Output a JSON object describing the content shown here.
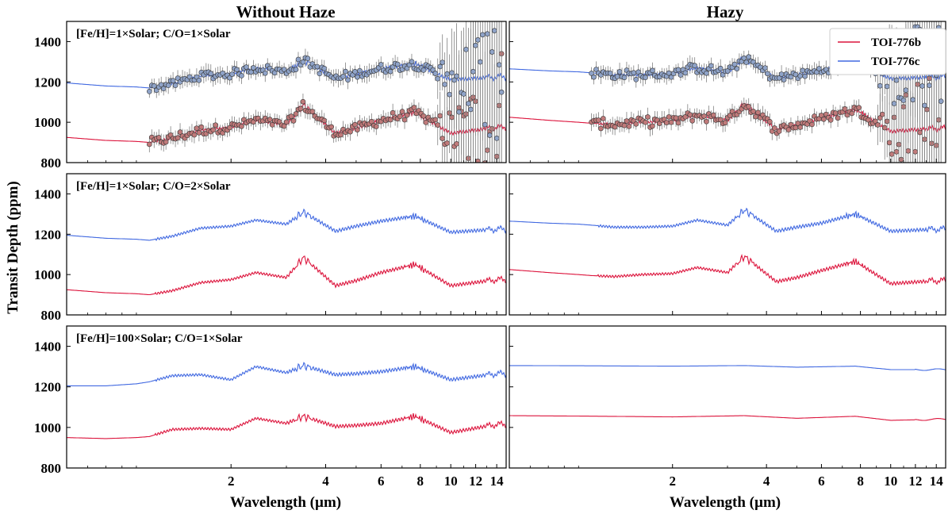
{
  "figure": {
    "column_titles": [
      "Without Haze",
      "Hazy"
    ],
    "xlabel": "Wavelength (µm)",
    "ylabel": "Transit Depth (ppm)",
    "legend": [
      {
        "label": "TOI-776b",
        "color": "#dc143c"
      },
      {
        "label": "TOI-776c",
        "color": "#4169e1"
      }
    ],
    "data_colors": {
      "b_points": "#c07a7a",
      "c_points": "#8fa3c8",
      "errorbar": "#808080"
    }
  },
  "chart_data": [
    {
      "type": "line",
      "panel": "Without Haze",
      "annotation": "[Fe/H]=1×Solar; C/O=1×Solar",
      "xscale": "log",
      "xlim": [
        0.6,
        15
      ],
      "ylim": [
        800,
        1500
      ],
      "xticks": [
        2,
        4,
        6,
        8,
        10,
        12,
        14
      ],
      "yticks": [
        800,
        1000,
        1200,
        1400
      ],
      "has_simulated_data": true,
      "series": [
        {
          "name": "TOI-776b",
          "x": [
            0.6,
            0.8,
            1.0,
            1.1,
            1.3,
            1.6,
            2.0,
            2.4,
            3.0,
            3.4,
            4.3,
            5.0,
            6.0,
            7.7,
            10.0,
            14.0
          ],
          "y": [
            925,
            910,
            905,
            900,
            920,
            960,
            975,
            1010,
            985,
            1085,
            945,
            970,
            1010,
            1050,
            945,
            975
          ]
        },
        {
          "name": "TOI-776c",
          "x": [
            0.6,
            0.8,
            1.0,
            1.1,
            1.3,
            1.6,
            2.0,
            2.4,
            3.0,
            3.4,
            4.3,
            5.0,
            6.0,
            7.7,
            10.0,
            14.0
          ],
          "y": [
            1195,
            1180,
            1175,
            1170,
            1190,
            1230,
            1240,
            1270,
            1250,
            1310,
            1215,
            1240,
            1265,
            1290,
            1210,
            1225
          ]
        }
      ]
    },
    {
      "type": "line",
      "panel": "Hazy",
      "annotation": "",
      "xscale": "log",
      "xlim": [
        0.6,
        15
      ],
      "ylim": [
        800,
        1500
      ],
      "xticks": [
        2,
        4,
        6,
        8,
        10,
        12,
        14
      ],
      "yticks": [
        800,
        1000,
        1200,
        1400
      ],
      "has_simulated_data": true,
      "series": [
        {
          "name": "TOI-776b",
          "x": [
            0.6,
            0.8,
            1.0,
            1.1,
            1.3,
            1.6,
            2.0,
            2.4,
            3.0,
            3.4,
            4.3,
            5.0,
            6.0,
            7.7,
            10.0,
            14.0
          ],
          "y": [
            1025,
            1010,
            1000,
            995,
            990,
            1000,
            1005,
            1035,
            1010,
            1090,
            965,
            985,
            1020,
            1065,
            955,
            970
          ]
        },
        {
          "name": "TOI-776c",
          "x": [
            0.6,
            0.8,
            1.0,
            1.1,
            1.3,
            1.6,
            2.0,
            2.4,
            3.0,
            3.4,
            4.3,
            5.0,
            6.0,
            7.7,
            10.0,
            14.0
          ],
          "y": [
            1265,
            1255,
            1250,
            1245,
            1235,
            1235,
            1240,
            1270,
            1245,
            1320,
            1215,
            1235,
            1255,
            1300,
            1215,
            1225
          ]
        }
      ]
    },
    {
      "type": "line",
      "panel": "Without Haze",
      "annotation": "[Fe/H]=1×Solar; C/O=2×Solar",
      "xscale": "log",
      "xlim": [
        0.6,
        15
      ],
      "ylim": [
        800,
        1500
      ],
      "xticks": [
        2,
        4,
        6,
        8,
        10,
        12,
        14
      ],
      "yticks": [
        800,
        1000,
        1200,
        1400
      ],
      "has_simulated_data": false,
      "series": [
        {
          "name": "TOI-776b",
          "x": [
            0.6,
            0.8,
            1.0,
            1.1,
            1.3,
            1.6,
            2.0,
            2.4,
            3.0,
            3.4,
            4.3,
            5.0,
            6.0,
            7.7,
            10.0,
            14.0
          ],
          "y": [
            925,
            910,
            905,
            900,
            920,
            960,
            975,
            1010,
            985,
            1085,
            945,
            970,
            1010,
            1050,
            945,
            975
          ]
        },
        {
          "name": "TOI-776c",
          "x": [
            0.6,
            0.8,
            1.0,
            1.1,
            1.3,
            1.6,
            2.0,
            2.4,
            3.0,
            3.4,
            4.3,
            5.0,
            6.0,
            7.7,
            10.0,
            14.0
          ],
          "y": [
            1195,
            1180,
            1175,
            1170,
            1190,
            1230,
            1240,
            1270,
            1250,
            1310,
            1215,
            1240,
            1265,
            1290,
            1210,
            1225
          ]
        }
      ]
    },
    {
      "type": "line",
      "panel": "Hazy",
      "annotation": "",
      "xscale": "log",
      "xlim": [
        0.6,
        15
      ],
      "ylim": [
        800,
        1500
      ],
      "xticks": [
        2,
        4,
        6,
        8,
        10,
        12,
        14
      ],
      "yticks": [
        800,
        1000,
        1200,
        1400
      ],
      "has_simulated_data": false,
      "series": [
        {
          "name": "TOI-776b",
          "x": [
            0.6,
            0.8,
            1.0,
            1.1,
            1.3,
            1.6,
            2.0,
            2.4,
            3.0,
            3.4,
            4.3,
            5.0,
            6.0,
            7.7,
            10.0,
            14.0
          ],
          "y": [
            1025,
            1010,
            1000,
            995,
            990,
            1000,
            1005,
            1035,
            1010,
            1090,
            965,
            985,
            1020,
            1065,
            955,
            970
          ]
        },
        {
          "name": "TOI-776c",
          "x": [
            0.6,
            0.8,
            1.0,
            1.1,
            1.3,
            1.6,
            2.0,
            2.4,
            3.0,
            3.4,
            4.3,
            5.0,
            6.0,
            7.7,
            10.0,
            14.0
          ],
          "y": [
            1265,
            1255,
            1250,
            1245,
            1235,
            1235,
            1240,
            1270,
            1245,
            1320,
            1215,
            1235,
            1255,
            1300,
            1215,
            1225
          ]
        }
      ]
    },
    {
      "type": "line",
      "panel": "Without Haze",
      "annotation": "[Fe/H]=100×Solar; C/O=1×Solar",
      "xscale": "log",
      "xlim": [
        0.6,
        15
      ],
      "ylim": [
        800,
        1500
      ],
      "xticks": [
        2,
        4,
        6,
        8,
        10,
        12,
        14
      ],
      "yticks": [
        800,
        1000,
        1200,
        1400
      ],
      "has_simulated_data": false,
      "series": [
        {
          "name": "TOI-776b",
          "x": [
            0.6,
            0.8,
            1.0,
            1.1,
            1.3,
            1.6,
            2.0,
            2.4,
            3.0,
            3.4,
            4.3,
            5.0,
            6.0,
            7.7,
            10.0,
            14.0
          ],
          "y": [
            950,
            945,
            950,
            955,
            990,
            995,
            990,
            1045,
            1020,
            1055,
            1005,
            1010,
            1020,
            1055,
            975,
            1015
          ]
        },
        {
          "name": "TOI-776c",
          "x": [
            0.6,
            0.8,
            1.0,
            1.1,
            1.3,
            1.6,
            2.0,
            2.4,
            3.0,
            3.4,
            4.3,
            5.0,
            6.0,
            7.7,
            10.0,
            14.0
          ],
          "y": [
            1205,
            1205,
            1215,
            1225,
            1255,
            1260,
            1235,
            1300,
            1270,
            1305,
            1260,
            1265,
            1275,
            1300,
            1235,
            1265
          ]
        }
      ]
    },
    {
      "type": "line",
      "panel": "Hazy",
      "annotation": "",
      "xscale": "log",
      "xlim": [
        0.6,
        15
      ],
      "ylim": [
        800,
        1500
      ],
      "xticks": [
        2,
        4,
        6,
        8,
        10,
        12,
        14
      ],
      "yticks": [
        800,
        1000,
        1200,
        1400
      ],
      "has_simulated_data": false,
      "series": [
        {
          "name": "TOI-776b",
          "x": [
            0.6,
            1.0,
            2.0,
            3.4,
            5.0,
            7.7,
            10.0,
            14.0
          ],
          "y": [
            1058,
            1056,
            1052,
            1058,
            1045,
            1055,
            1035,
            1040
          ]
        },
        {
          "name": "TOI-776c",
          "x": [
            0.6,
            1.0,
            2.0,
            3.4,
            5.0,
            7.7,
            10.0,
            14.0
          ],
          "y": [
            1305,
            1304,
            1302,
            1305,
            1297,
            1302,
            1285,
            1285
          ]
        }
      ]
    }
  ]
}
